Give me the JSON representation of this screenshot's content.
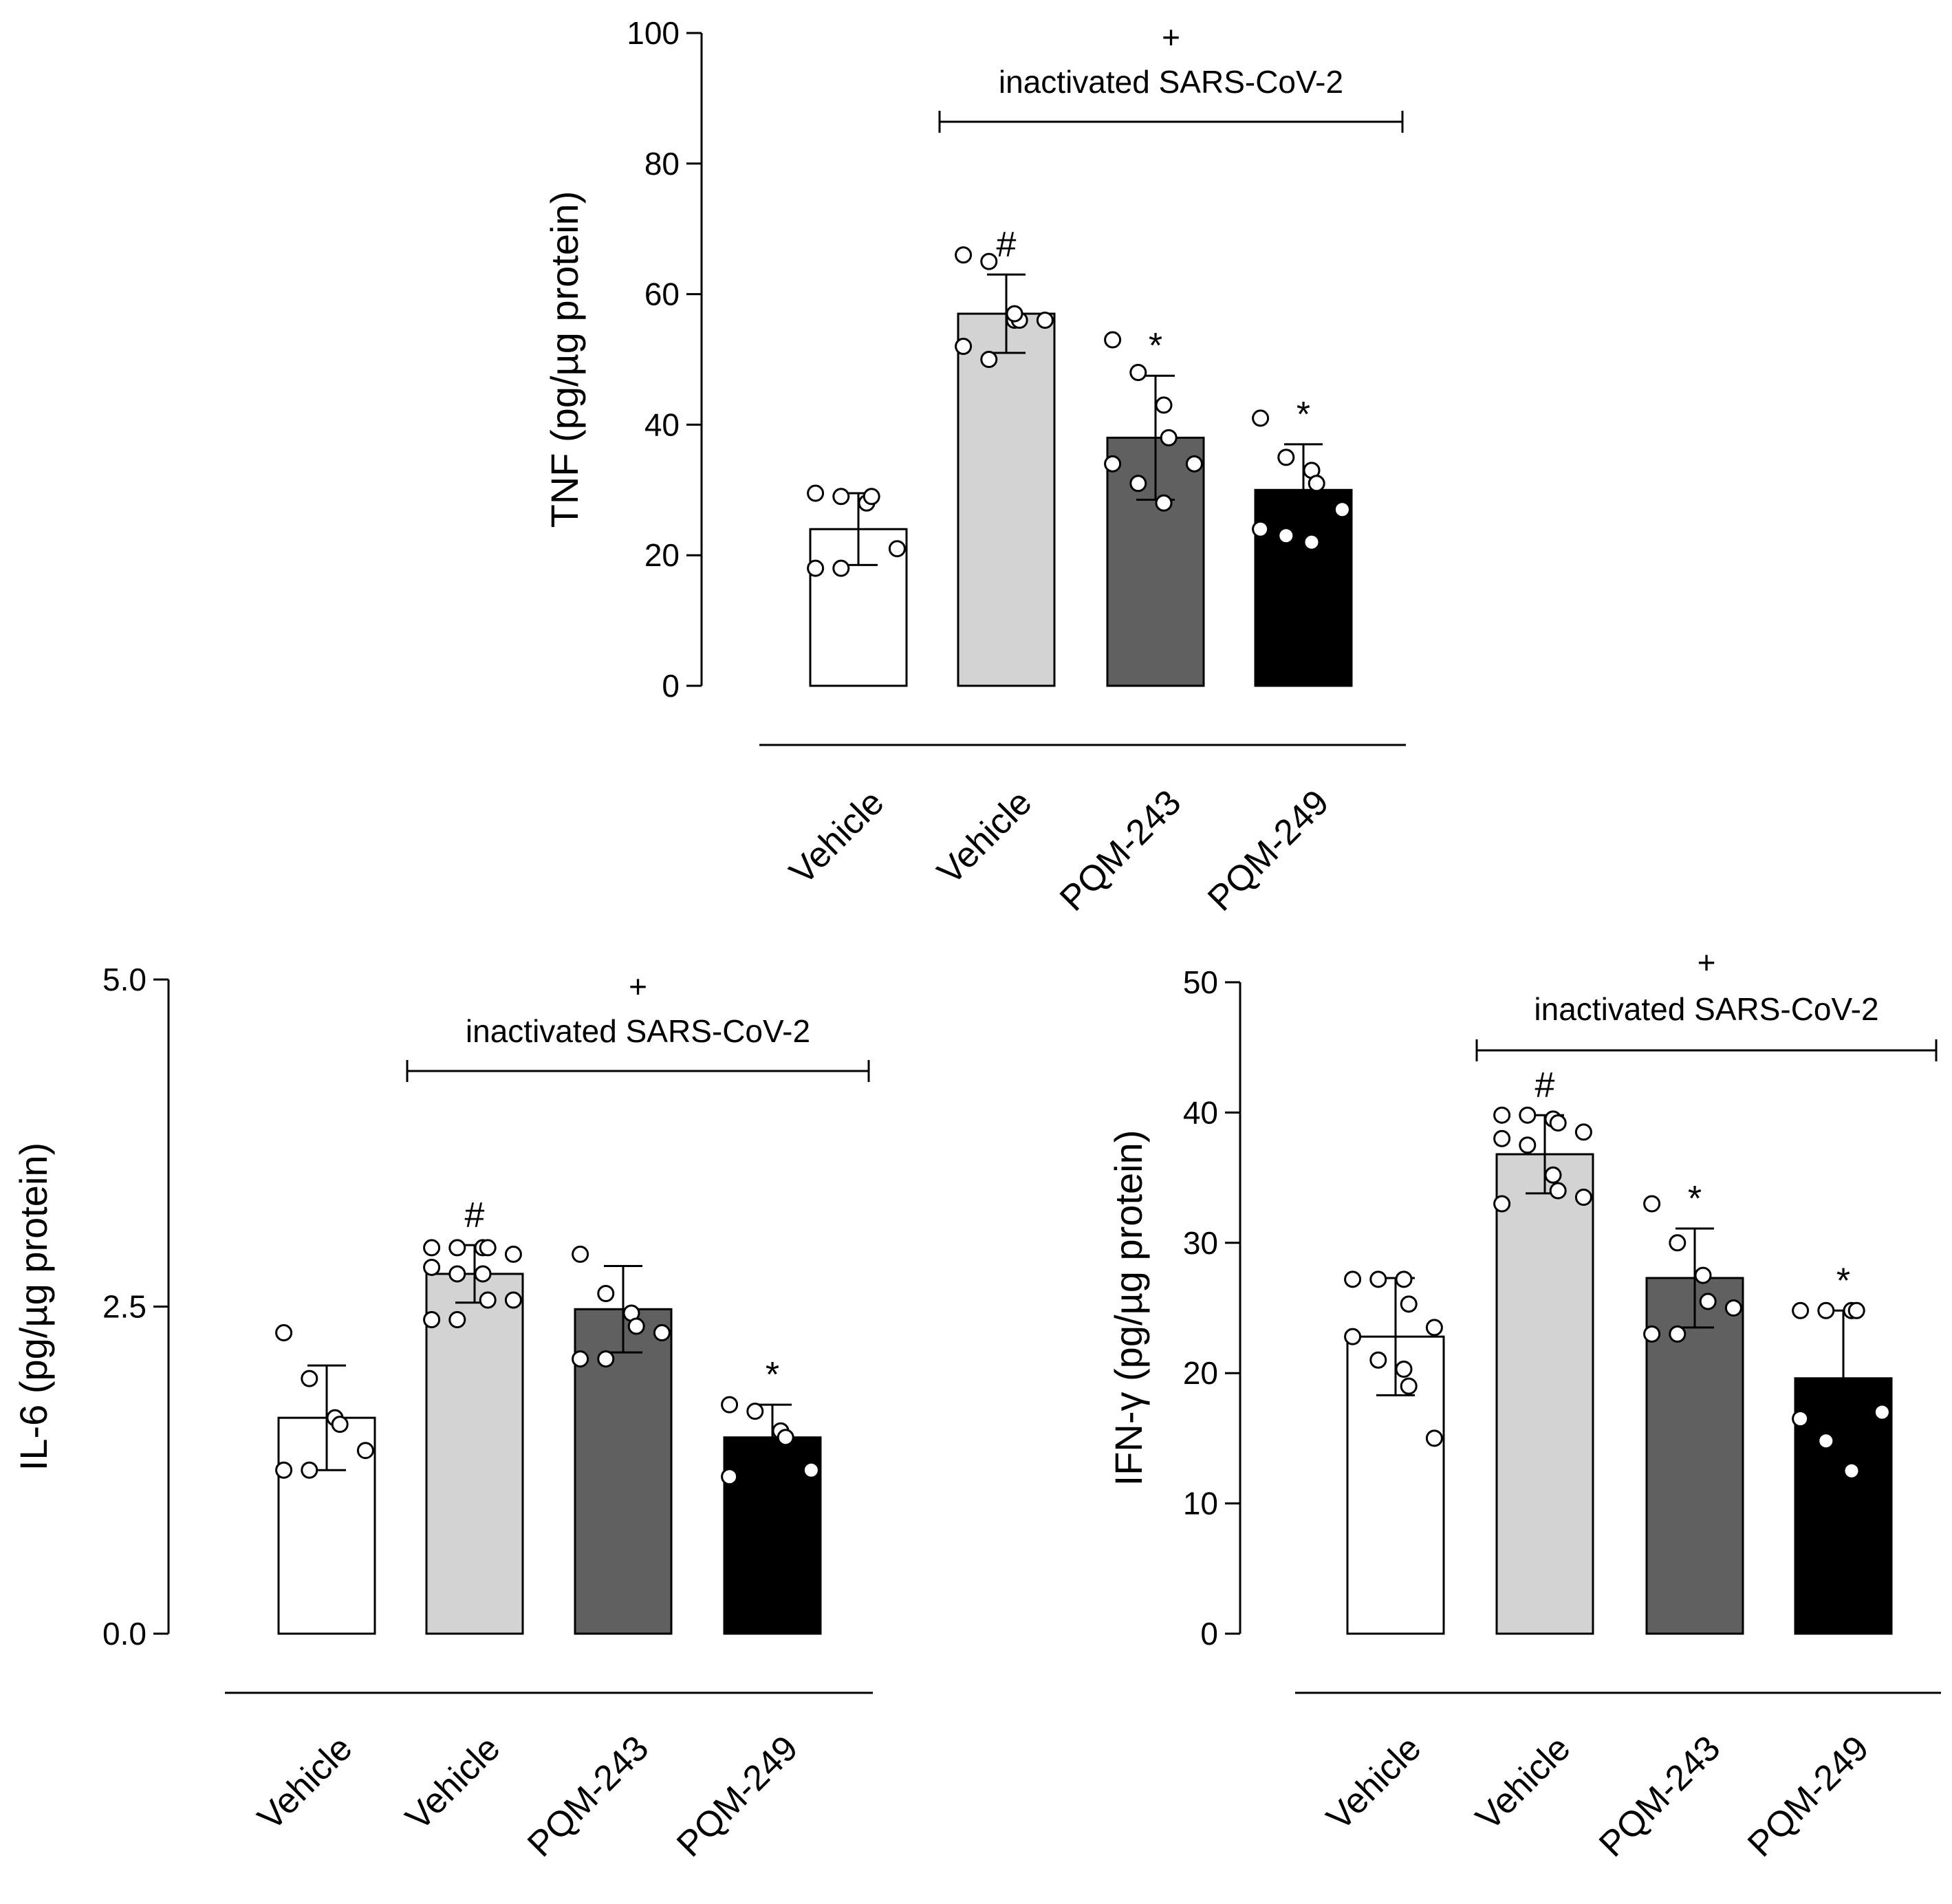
{
  "chart_data": [
    {
      "id": "tnf",
      "type": "bar",
      "ylabel": "TNF (pg/µg protein)",
      "ylim": [
        0,
        100
      ],
      "yticks": [
        "0",
        "20",
        "40",
        "60",
        "80",
        "100"
      ],
      "ytick_values": [
        0,
        20,
        40,
        60,
        80,
        100
      ],
      "categories": [
        "Vehicle",
        "Vehicle",
        "PQM-243",
        "PQM-249"
      ],
      "values": [
        24,
        57,
        38,
        30
      ],
      "errors": [
        5.5,
        6,
        9.5,
        7
      ],
      "points": [
        [
          29.5,
          29,
          28,
          29,
          21,
          18,
          18
        ],
        [
          66,
          65,
          56,
          56,
          56,
          52,
          50,
          57
        ],
        [
          53,
          48,
          43,
          38,
          34,
          34,
          31,
          28
        ],
        [
          41,
          35,
          33,
          31,
          27,
          24,
          23,
          22
        ]
      ],
      "colors": [
        "#ffffff",
        "#d3d3d3",
        "#606060",
        "#000000"
      ],
      "significance": [
        "",
        "#",
        "*",
        "*"
      ],
      "bracket_sign": "+",
      "bracket_label": "inactivated SARS-CoV-2"
    },
    {
      "id": "il6",
      "type": "bar",
      "ylabel": "IL-6 (pg/µg protein)",
      "ylim": [
        0,
        5
      ],
      "yticks": [
        "0.0",
        "2.5",
        "5.0"
      ],
      "ytick_values": [
        0,
        2.5,
        5.0
      ],
      "categories": [
        "Vehicle",
        "Vehicle",
        "PQM-243",
        "PQM-249"
      ],
      "values": [
        1.65,
        2.75,
        2.48,
        1.5
      ],
      "errors": [
        0.4,
        0.22,
        0.33,
        0.25
      ],
      "points": [
        [
          2.3,
          1.95,
          1.65,
          1.6,
          1.4,
          1.25,
          1.25
        ],
        [
          2.95,
          2.95,
          2.95,
          2.95,
          2.9,
          2.8,
          2.75,
          2.75,
          2.55,
          2.55,
          2.4,
          2.4
        ],
        [
          2.9,
          2.6,
          2.45,
          2.35,
          2.3,
          2.1,
          2.1
        ],
        [
          1.75,
          1.7,
          1.55,
          1.5,
          1.25,
          1.2
        ]
      ],
      "colors": [
        "#ffffff",
        "#d3d3d3",
        "#606060",
        "#000000"
      ],
      "significance": [
        "",
        "#",
        "",
        "*"
      ],
      "bracket_sign": "+",
      "bracket_label": "inactivated SARS-CoV-2"
    },
    {
      "id": "ifng",
      "type": "bar",
      "ylabel": "IFN-γ (pg/µg protein)",
      "ylim": [
        0,
        50
      ],
      "yticks": [
        "0",
        "10",
        "20",
        "30",
        "40",
        "50"
      ],
      "ytick_values": [
        0,
        10,
        20,
        30,
        40,
        50
      ],
      "categories": [
        "Vehicle",
        "Vehicle",
        "PQM-243",
        "PQM-249"
      ],
      "values": [
        22.8,
        36.8,
        27.3,
        19.6
      ],
      "errors": [
        4.5,
        3.0,
        3.8,
        5.2
      ],
      "points": [
        [
          27.2,
          27.2,
          27.2,
          25.3,
          23.5,
          22.8,
          21.0,
          20.3,
          19.0,
          15.0
        ],
        [
          39.8,
          39.8,
          39.5,
          39.2,
          38.5,
          38.0,
          37.5,
          35.2,
          34.0,
          33.5,
          33.0
        ],
        [
          33.0,
          30.0,
          27.5,
          25.5,
          25.0,
          23.0,
          23.0
        ],
        [
          24.8,
          24.8,
          24.8,
          24.8,
          17.0,
          16.5,
          14.8,
          12.5
        ]
      ],
      "colors": [
        "#ffffff",
        "#d3d3d3",
        "#606060",
        "#000000"
      ],
      "significance": [
        "",
        "#",
        "*",
        "*"
      ],
      "bracket_sign": "+",
      "bracket_label": "inactivated SARS-CoV-2"
    }
  ]
}
